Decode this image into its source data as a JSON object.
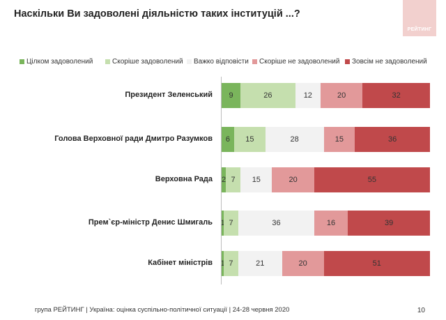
{
  "title": "Наскільки Ви задоволені діяльністю таких інституцій ...?",
  "logo_text": "РЕЙТИНГ",
  "footer": "група РЕЙТИНГ | Україна: оцінка суспільно-політичної ситуації | 24-28 червня 2020",
  "page_number": "10",
  "colors": {
    "fully_satisfied": "#7ab55c",
    "rather_satisfied": "#c5dfae",
    "hard_to_say": "#f2f2f2",
    "rather_unsatisfied": "#e2999a",
    "fully_unsatisfied": "#c0494b"
  },
  "chart_data": {
    "type": "bar",
    "orientation": "horizontal-stacked-100",
    "title": "Наскільки Ви задоволені діяльністю таких інституцій ...?",
    "legend_position": "top",
    "categories": [
      "Президент Зеленський",
      "Голова Верховної ради Дмитро Разумков",
      "Верховна Рада",
      "Прем`єр-міністр Денис Шмигаль",
      "Кабінет міністрів"
    ],
    "series": [
      {
        "name": "Цілком задоволений",
        "values": [
          9,
          6,
          2,
          1,
          1
        ],
        "color": "#7ab55c"
      },
      {
        "name": "Скоріше задоволений",
        "values": [
          26,
          15,
          7,
          7,
          7
        ],
        "color": "#c5dfae"
      },
      {
        "name": "Важко відповісти",
        "values": [
          12,
          28,
          15,
          36,
          21
        ],
        "color": "#f2f2f2"
      },
      {
        "name": "Скоріше не задоволений",
        "values": [
          20,
          15,
          20,
          16,
          20
        ],
        "color": "#e2999a"
      },
      {
        "name": "Зовсім не задоволений",
        "values": [
          32,
          36,
          55,
          39,
          51
        ],
        "color": "#c0494b"
      }
    ]
  }
}
